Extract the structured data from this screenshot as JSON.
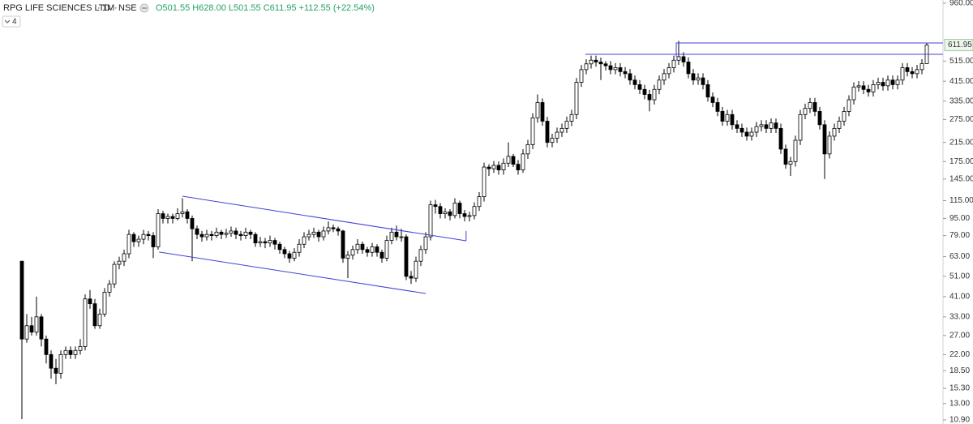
{
  "chart_data": {
    "type": "candlestick",
    "title": "RPG LIFE SCIENCES LTD",
    "interval": "1M",
    "exchange": "NSE",
    "quote": "O501.55 H628.00 L501.55 C611.95 +112.55 (+22.54%)",
    "indicator_count": "4",
    "log_scale": true,
    "up_color": "#ffffff",
    "down_color": "#000000",
    "line_color": "#4040d8",
    "ylim": [
      10.9,
      993
    ],
    "yticks": [
      {
        "value": 10.9,
        "label": "10.90"
      },
      {
        "value": 13,
        "label": "13.00"
      },
      {
        "value": 15.3,
        "label": "15.30"
      },
      {
        "value": 18.5,
        "label": "18.50"
      },
      {
        "value": 22,
        "label": "22.00"
      },
      {
        "value": 27,
        "label": "27.00"
      },
      {
        "value": 33,
        "label": "33.00"
      },
      {
        "value": 41,
        "label": "41.00"
      },
      {
        "value": 51,
        "label": "51.00"
      },
      {
        "value": 63,
        "label": "63.00"
      },
      {
        "value": 79,
        "label": "79.00"
      },
      {
        "value": 95,
        "label": "95.00"
      },
      {
        "value": 115,
        "label": "115.00"
      },
      {
        "value": 145,
        "label": "145.00"
      },
      {
        "value": 175,
        "label": "175.00"
      },
      {
        "value": 215,
        "label": "215.00"
      },
      {
        "value": 275,
        "label": "275.00"
      },
      {
        "value": 335,
        "label": "335.00"
      },
      {
        "value": 415,
        "label": "415.00"
      },
      {
        "value": 515,
        "label": "515.00"
      },
      {
        "value": 960,
        "label": "960.00"
      }
    ],
    "price_marker": {
      "value": 611.95,
      "label": "611.95"
    },
    "open": [
      60,
      26,
      30,
      28,
      33,
      26,
      22,
      19,
      18,
      22,
      23,
      22,
      23,
      24,
      40,
      38,
      30,
      34,
      43,
      47,
      58,
      60,
      65,
      80,
      74,
      76,
      80,
      79,
      70,
      100,
      95,
      97,
      95,
      100,
      102,
      95,
      85,
      80,
      78,
      80,
      79,
      82,
      80,
      81,
      83,
      80,
      79,
      82,
      80,
      73,
      74,
      73,
      75,
      72,
      68,
      65,
      62,
      66,
      72,
      78,
      80,
      82,
      78,
      83,
      86,
      85,
      83,
      62,
      64,
      68,
      72,
      68,
      66,
      70,
      66,
      62,
      75,
      82,
      78,
      78,
      51,
      50,
      60,
      68,
      78,
      110,
      108,
      100,
      102,
      98,
      112,
      100,
      97,
      98,
      108,
      120,
      165,
      162,
      168,
      160,
      172,
      185,
      170,
      160,
      190,
      210,
      280,
      330,
      270,
      215,
      225,
      240,
      250,
      270,
      290,
      410,
      470,
      500,
      520,
      510,
      500,
      490,
      470,
      480,
      460,
      450,
      420,
      400,
      380,
      360,
      340,
      380,
      420,
      450,
      480,
      520,
      540,
      510,
      450,
      420,
      430,
      400,
      350,
      330,
      300,
      270,
      290,
      260,
      250,
      240,
      230,
      240,
      255,
      260,
      250,
      265,
      250,
      200,
      170,
      175,
      220,
      290,
      310,
      330,
      300,
      260,
      190,
      230,
      250,
      270,
      300,
      340,
      390,
      395,
      380,
      370,
      400,
      410,
      395,
      420,
      400,
      420,
      480,
      460,
      450,
      470,
      501.55
    ],
    "high": [
      60,
      34,
      33,
      41,
      34,
      27,
      23,
      21,
      23,
      24,
      24,
      24,
      26,
      42,
      44,
      40,
      36,
      45,
      49,
      60,
      63,
      68,
      84,
      82,
      79,
      84,
      83,
      82,
      105,
      103,
      100,
      100,
      106,
      118,
      105,
      98,
      88,
      83,
      84,
      83,
      86,
      84,
      85,
      87,
      86,
      83,
      86,
      84,
      82,
      78,
      77,
      79,
      77,
      74,
      70,
      67,
      69,
      76,
      82,
      84,
      86,
      84,
      87,
      92,
      89,
      87,
      84,
      67,
      71,
      76,
      74,
      70,
      73,
      72,
      68,
      79,
      86,
      88,
      85,
      80,
      54,
      63,
      71,
      82,
      115,
      116,
      112,
      106,
      105,
      118,
      115,
      104,
      102,
      113,
      126,
      173,
      170,
      176,
      175,
      181,
      215,
      190,
      178,
      200,
      221,
      294,
      360,
      345,
      283,
      236,
      252,
      263,
      284,
      305,
      430,
      494,
      525,
      546,
      546,
      535,
      515,
      515,
      504,
      504,
      483,
      473,
      441,
      420,
      399,
      378,
      399,
      441,
      473,
      504,
      546,
      640,
      567,
      536,
      473,
      452,
      452,
      420,
      368,
      347,
      315,
      305,
      305,
      273,
      263,
      252,
      252,
      268,
      273,
      273,
      278,
      278,
      263,
      210,
      184,
      231,
      305,
      326,
      347,
      347,
      315,
      273,
      242,
      263,
      284,
      315,
      357,
      410,
      415,
      415,
      399,
      420,
      431,
      431,
      441,
      441,
      441,
      504,
      504,
      483,
      494,
      526,
      628
    ],
    "low": [
      11,
      25,
      27,
      27,
      24,
      20,
      17,
      16,
      17,
      21,
      21,
      21,
      22,
      23,
      36,
      29,
      29,
      33,
      41,
      45,
      55,
      57,
      62,
      70,
      70,
      72,
      75,
      62,
      68,
      90,
      90,
      90,
      93,
      96,
      90,
      60,
      76,
      74,
      75,
      75,
      77,
      76,
      77,
      78,
      76,
      75,
      76,
      76,
      70,
      70,
      69,
      70,
      68,
      65,
      62,
      59,
      60,
      63,
      69,
      75,
      77,
      74,
      75,
      80,
      82,
      79,
      59,
      50,
      61,
      65,
      65,
      63,
      63,
      63,
      59,
      60,
      72,
      75,
      74,
      49,
      47,
      48,
      57,
      65,
      75,
      100,
      95,
      95,
      93,
      95,
      95,
      92,
      92,
      94,
      103,
      114,
      150,
      155,
      152,
      152,
      165,
      165,
      152,
      155,
      180,
      200,
      266,
      257,
      204,
      204,
      214,
      228,
      238,
      256,
      276,
      390,
      447,
      475,
      485,
      420,
      466,
      447,
      447,
      437,
      428,
      399,
      380,
      361,
      342,
      300,
      323,
      361,
      399,
      428,
      456,
      494,
      485,
      428,
      399,
      399,
      380,
      333,
      314,
      285,
      257,
      257,
      247,
      238,
      228,
      219,
      219,
      228,
      242,
      238,
      238,
      238,
      190,
      162,
      150,
      166,
      209,
      276,
      295,
      285,
      247,
      145,
      181,
      219,
      238,
      257,
      285,
      323,
      371,
      361,
      352,
      352,
      380,
      375,
      375,
      380,
      380,
      399,
      437,
      428,
      428,
      447,
      501.55
    ],
    "close": [
      26,
      30,
      28,
      33,
      26,
      22,
      19,
      18,
      22,
      23,
      22,
      23,
      24,
      40,
      38,
      30,
      34,
      43,
      47,
      58,
      60,
      65,
      80,
      74,
      76,
      80,
      79,
      70,
      100,
      95,
      97,
      95,
      100,
      102,
      95,
      85,
      80,
      78,
      80,
      79,
      82,
      80,
      81,
      83,
      80,
      79,
      82,
      80,
      73,
      74,
      73,
      75,
      72,
      68,
      65,
      62,
      66,
      72,
      78,
      80,
      82,
      78,
      83,
      86,
      85,
      83,
      62,
      64,
      68,
      72,
      68,
      66,
      70,
      66,
      62,
      75,
      82,
      78,
      78,
      51,
      50,
      60,
      68,
      78,
      110,
      108,
      100,
      102,
      98,
      112,
      100,
      97,
      98,
      108,
      120,
      165,
      162,
      168,
      160,
      172,
      185,
      170,
      160,
      190,
      210,
      280,
      330,
      270,
      215,
      225,
      240,
      250,
      270,
      290,
      410,
      470,
      500,
      520,
      510,
      500,
      490,
      470,
      480,
      460,
      450,
      420,
      400,
      380,
      360,
      340,
      380,
      420,
      450,
      480,
      520,
      540,
      510,
      450,
      420,
      430,
      400,
      350,
      330,
      300,
      270,
      290,
      260,
      250,
      240,
      230,
      240,
      255,
      260,
      250,
      265,
      250,
      200,
      170,
      175,
      220,
      290,
      310,
      330,
      300,
      260,
      190,
      230,
      250,
      270,
      300,
      340,
      390,
      395,
      380,
      370,
      400,
      410,
      395,
      420,
      400,
      420,
      480,
      460,
      450,
      470,
      501.55,
      611.95
    ],
    "trendlines": [
      {
        "x": [
          33,
          91.3
        ],
        "y": [
          120.6,
          74.7
        ]
      },
      {
        "x": [
          28.2,
          83
        ],
        "y": [
          66.2,
          42.4
        ]
      },
      {
        "x": [
          91.3,
          91.3
        ],
        "y": [
          74.7,
          83
        ]
      },
      {
        "x": [
          115.8,
          189.3
        ],
        "y": [
          554,
          554
        ]
      },
      {
        "x": [
          134.5,
          134.5,
          189.3
        ],
        "y": [
          540,
          626,
          626
        ]
      }
    ]
  }
}
